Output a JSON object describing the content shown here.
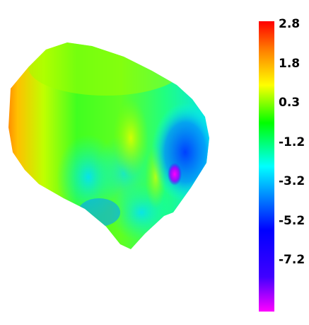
{
  "chart_data": {
    "type": "heatmap",
    "title": "",
    "xlabel": "",
    "ylabel": "",
    "colorbar": {
      "ticks": [
        {
          "value": 2.8,
          "label": "2.8"
        },
        {
          "value": 1.8,
          "label": "1.8"
        },
        {
          "value": 0.3,
          "label": "0.3"
        },
        {
          "value": -1.2,
          "label": "-1.2"
        },
        {
          "value": -3.2,
          "label": "-3.2"
        },
        {
          "value": -5.2,
          "label": "-5.2"
        },
        {
          "value": -7.2,
          "label": "-7.2"
        }
      ],
      "range": [
        -7.2,
        2.8
      ],
      "colors": [
        "#ff00ff",
        "#0000ff",
        "#00ffff",
        "#00ff00",
        "#ffff00",
        "#ff8000",
        "#ff0000"
      ]
    },
    "surface": {
      "min_value": -7.2,
      "max_value": 2.8,
      "high_region": "upper-left",
      "low_region": "right-center"
    }
  }
}
